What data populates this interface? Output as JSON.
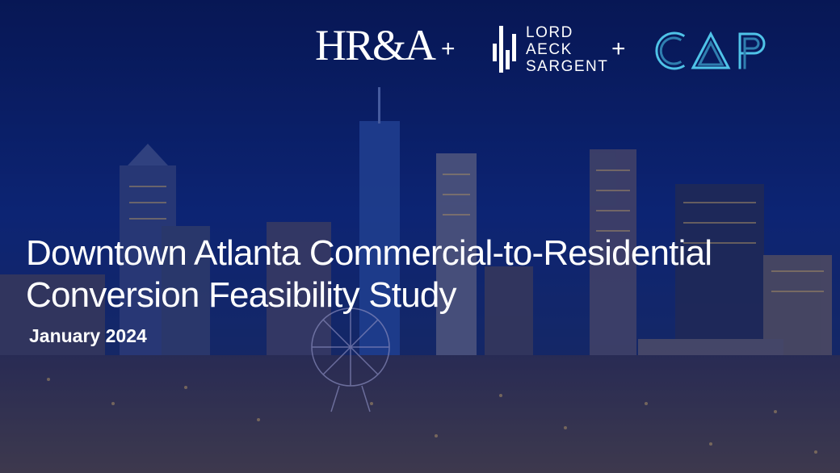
{
  "logos": {
    "hra": "HR&A",
    "plus_1": "+",
    "las_lines": [
      "LORD",
      "AECK",
      "SARGENT"
    ],
    "plus_2": "+",
    "cap": "CAP"
  },
  "title_lines": [
    "Downtown Atlanta Commercial-to-Residential",
    "Conversion Feasibility Study"
  ],
  "date": "January 2024",
  "colors": {
    "sky_top": "#071653",
    "sky_mid": "#0f2a82",
    "overlay": "#0a1a5a",
    "text": "#ffffff",
    "cap_accent": "#4fc3e8",
    "city_lights": "#f2c46b"
  }
}
